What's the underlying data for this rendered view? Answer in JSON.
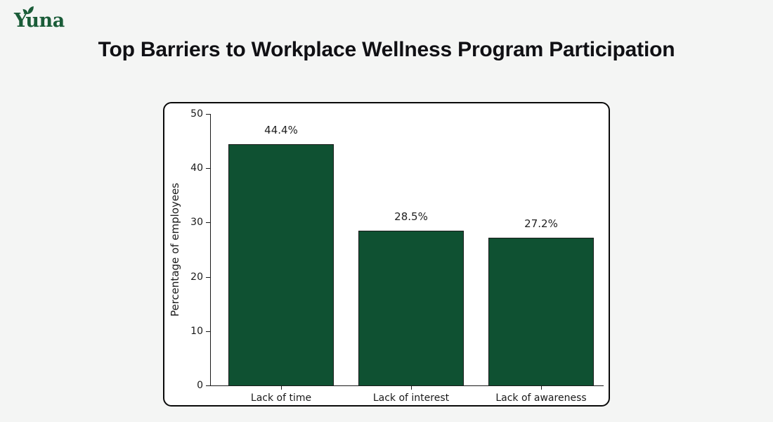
{
  "brand": {
    "logo_text": "Yuna"
  },
  "header": {
    "title": "Top Barriers to Workplace Wellness Program Participation"
  },
  "chart_data": {
    "type": "bar",
    "title": "Top Barriers to Workplace Wellness Program Participation",
    "categories": [
      "Lack of time",
      "Lack of interest",
      "Lack of awareness"
    ],
    "values": [
      44.4,
      28.5,
      27.2
    ],
    "value_labels": [
      "44.4%",
      "28.5%",
      "27.2%"
    ],
    "xlabel": "",
    "ylabel": "Percentage of employees",
    "ylim": [
      0,
      50
    ],
    "yticks": [
      0,
      10,
      20,
      30,
      40,
      50
    ],
    "grid": false,
    "legend": "none",
    "bar_color": "#0f5132",
    "bar_edge_color": "#1a1a1a"
  },
  "colors": {
    "page_background": "#f4f5f4",
    "card_background": "#ffffff",
    "card_border": "#0a0a0a",
    "title_text": "#101014",
    "logo_green": "#1a5c38",
    "axis_text": "#1a1a1a"
  }
}
